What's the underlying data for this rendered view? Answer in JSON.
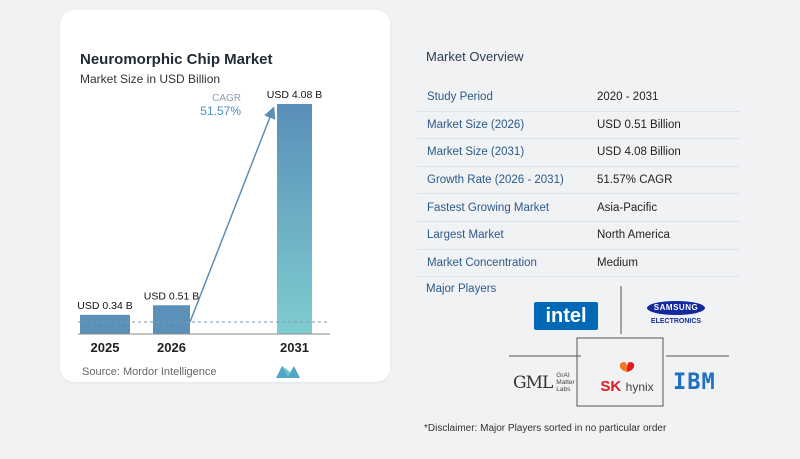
{
  "chart_data": {
    "type": "bar",
    "title": "Neuromorphic Chip Market",
    "subtitle": "Market Size in USD Billion",
    "categories": [
      "2025",
      "2026",
      "2031"
    ],
    "values": [
      0.34,
      0.51,
      4.08
    ],
    "value_labels": [
      "USD 0.34 B",
      "USD 0.51 B",
      "USD 4.08 B"
    ],
    "cagr_label": "CAGR",
    "cagr_value": "51.57%",
    "ylim": [
      0,
      4.08
    ],
    "grid": false,
    "colors": {
      "bar_low": "#5b91b8",
      "bar_top": "#5a8fb8",
      "bar_bottom": "#7ecdd0",
      "arrow": "#5a8fb8"
    }
  },
  "source_text": "Source:  Mordor Intelligence",
  "overview": {
    "title": "Market Overview",
    "rows": [
      {
        "label": "Study Period",
        "value": "2020 - 2031"
      },
      {
        "label": "Market Size (2026)",
        "value": "USD 0.51 Billion"
      },
      {
        "label": "Market Size (2031)",
        "value": "USD 4.08 Billion"
      },
      {
        "label": "Growth Rate (2026 - 2031)",
        "value": "51.57% CAGR"
      },
      {
        "label": "Fastest Growing Market",
        "value": "Asia-Pacific"
      },
      {
        "label": "Largest Market",
        "value": "North America"
      },
      {
        "label": "Market Concentration",
        "value": "Medium"
      }
    ]
  },
  "players": {
    "title": "Major Players",
    "intel": "intel",
    "samsung_top": "SAMSUNG",
    "samsung_bottom": "ELECTRONICS",
    "graimatter_mark": "GML",
    "graimatter_text": [
      "GrAI",
      "Matter",
      "Labs"
    ],
    "sk_mark": "SK",
    "sk_text": "hynix",
    "ibm": "IBM"
  },
  "disclaimer": "*Disclaimer: Major Players sorted in no particular order"
}
